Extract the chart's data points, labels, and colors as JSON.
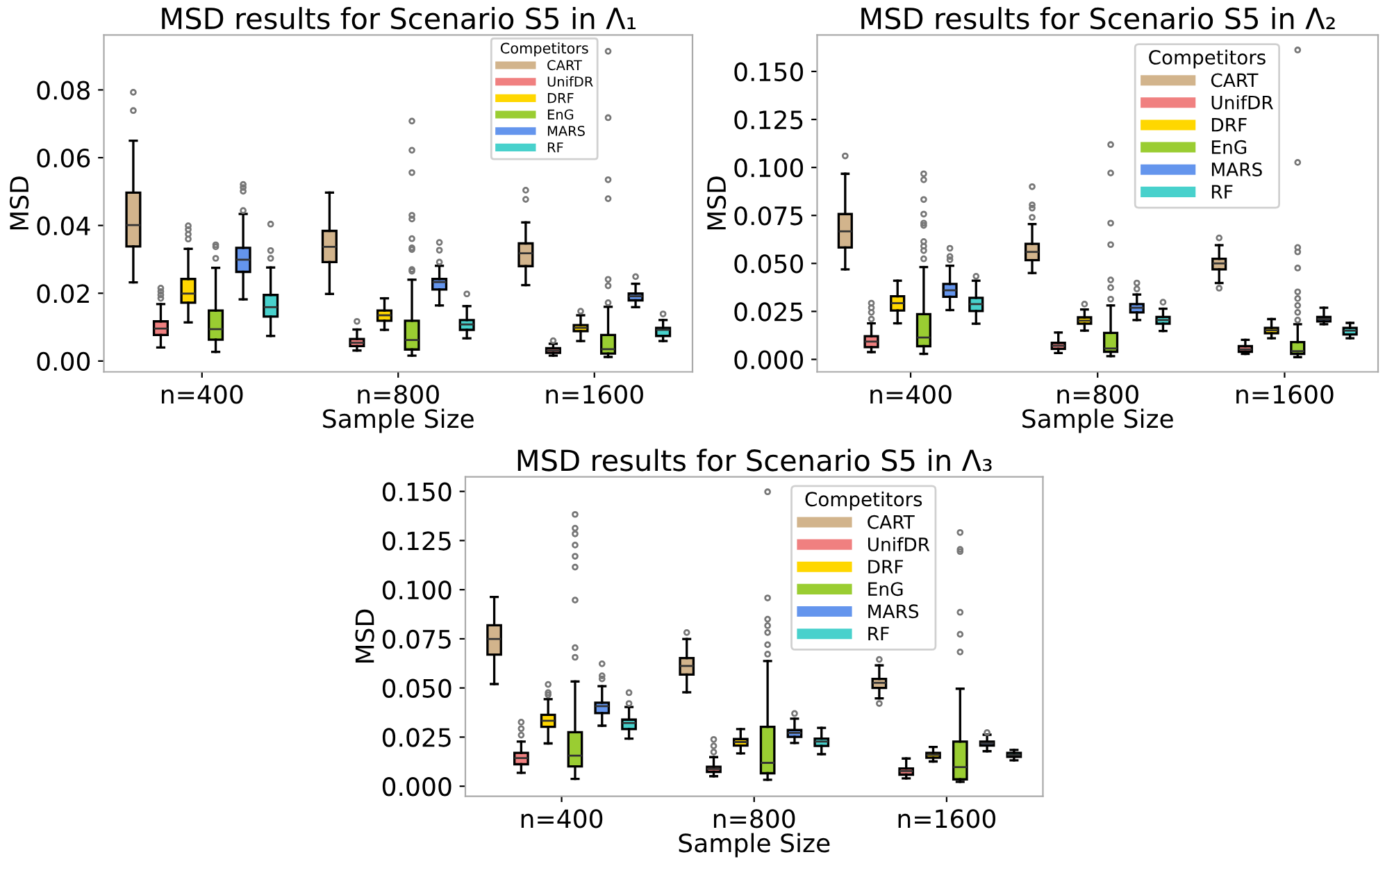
{
  "chart_data": [
    {
      "type": "box",
      "title": "MSD results for Scenario S5 in Λ₁",
      "xlabel": "Sample Size",
      "ylabel": "MSD",
      "categories": [
        "n=400",
        "n=800",
        "n=1600"
      ],
      "legend_title": "Competitors",
      "legend": "top right",
      "ylim": [
        -0.0032,
        0.0962
      ],
      "yticks": [
        {
          "value": 0,
          "label": "0.00"
        },
        {
          "value": 0.02,
          "label": "0.02"
        },
        {
          "value": 0.04,
          "label": "0.04"
        },
        {
          "value": 0.06,
          "label": "0.06"
        },
        {
          "value": 0.08,
          "label": "0.08"
        }
      ],
      "series": [
        {
          "name": "CART",
          "color": "#d2b48c",
          "boxes": [
            {
              "low": 0.0232,
              "q1": 0.0338,
              "median": 0.0401,
              "q3": 0.0497,
              "high": 0.065,
              "outliers": [
                0.0739,
                0.0793
              ]
            },
            {
              "low": 0.0198,
              "q1": 0.0292,
              "median": 0.0337,
              "q3": 0.0384,
              "high": 0.0497
            },
            {
              "low": 0.0224,
              "q1": 0.028,
              "median": 0.0318,
              "q3": 0.0347,
              "high": 0.0409,
              "outliers": [
                0.0477,
                0.0504
              ]
            }
          ]
        },
        {
          "name": "UnifDR",
          "color": "#f08080",
          "boxes": [
            {
              "low": 0.004,
              "q1": 0.0077,
              "median": 0.0096,
              "q3": 0.0117,
              "high": 0.0168,
              "outliers": [
                0.0185,
                0.0195,
                0.0205,
                0.0215
              ]
            },
            {
              "low": 0.0031,
              "q1": 0.0044,
              "median": 0.0054,
              "q3": 0.0065,
              "high": 0.0093,
              "outliers": [
                0.0117
              ]
            },
            {
              "low": 0.0016,
              "q1": 0.0024,
              "median": 0.0031,
              "q3": 0.0038,
              "high": 0.0051,
              "outliers": [
                0.006
              ]
            }
          ]
        },
        {
          "name": "DRF",
          "color": "#ffd700",
          "boxes": [
            {
              "low": 0.0114,
              "q1": 0.0172,
              "median": 0.0199,
              "q3": 0.0242,
              "high": 0.0331,
              "outliers": [
                0.036,
                0.0374,
                0.0388,
                0.0399
              ]
            },
            {
              "low": 0.0092,
              "q1": 0.0119,
              "median": 0.0135,
              "q3": 0.0149,
              "high": 0.0185
            },
            {
              "low": 0.0059,
              "q1": 0.0088,
              "median": 0.0098,
              "q3": 0.0106,
              "high": 0.0135,
              "outliers": [
                0.0147
              ]
            }
          ]
        },
        {
          "name": "EnG",
          "color": "#9acd32",
          "boxes": [
            {
              "low": 0.0027,
              "q1": 0.0063,
              "median": 0.0094,
              "q3": 0.0149,
              "high": 0.0275,
              "outliers": [
                0.0303,
                0.0337,
                0.0343
              ]
            },
            {
              "low": 0.0016,
              "q1": 0.0034,
              "median": 0.0062,
              "q3": 0.0119,
              "high": 0.024,
              "outliers": [
                0.0265,
                0.027,
                0.0329,
                0.0334,
                0.0361,
                0.0419,
                0.043,
                0.0556,
                0.0622,
                0.0708
              ]
            },
            {
              "low": 0.0012,
              "q1": 0.0022,
              "median": 0.0035,
              "q3": 0.0077,
              "high": 0.016,
              "outliers": [
                0.0172,
                0.0222,
                0.0241,
                0.0479,
                0.0535,
                0.0718,
                0.0914
              ]
            }
          ]
        },
        {
          "name": "MARS",
          "color": "#6495ed",
          "boxes": [
            {
              "low": 0.0182,
              "q1": 0.0263,
              "median": 0.0299,
              "q3": 0.0334,
              "high": 0.0434,
              "outliers": [
                0.0444,
                0.0501,
                0.0512,
                0.0521
              ]
            },
            {
              "low": 0.0164,
              "q1": 0.0211,
              "median": 0.0233,
              "q3": 0.0242,
              "high": 0.0281,
              "outliers": [
                0.0292,
                0.0327,
                0.035
              ]
            },
            {
              "low": 0.0159,
              "q1": 0.0179,
              "median": 0.0191,
              "q3": 0.0199,
              "high": 0.0228,
              "outliers": [
                0.0249
              ]
            }
          ]
        },
        {
          "name": "RF",
          "color": "#48d1cc",
          "boxes": [
            {
              "low": 0.0074,
              "q1": 0.0131,
              "median": 0.0159,
              "q3": 0.0195,
              "high": 0.0276,
              "outliers": [
                0.0303,
                0.0326,
                0.0404
              ]
            },
            {
              "low": 0.0067,
              "q1": 0.0092,
              "median": 0.0108,
              "q3": 0.0121,
              "high": 0.0162,
              "outliers": [
                0.0198
              ]
            },
            {
              "low": 0.0059,
              "q1": 0.0074,
              "median": 0.0092,
              "q3": 0.0098,
              "high": 0.0121,
              "outliers": [
                0.0139
              ]
            }
          ]
        }
      ]
    },
    {
      "type": "box",
      "title": "MSD results for Scenario S5 in Λ₂",
      "xlabel": "Sample Size",
      "ylabel": "MSD",
      "categories": [
        "n=400",
        "n=800",
        "n=1600"
      ],
      "legend_title": "Competitors",
      "legend": "top right",
      "ylim": [
        -0.0065,
        0.169
      ],
      "yticks": [
        {
          "value": 0,
          "label": "0.000"
        },
        {
          "value": 0.025,
          "label": "0.025"
        },
        {
          "value": 0.05,
          "label": "0.050"
        },
        {
          "value": 0.075,
          "label": "0.075"
        },
        {
          "value": 0.1,
          "label": "0.100"
        },
        {
          "value": 0.125,
          "label": "0.125"
        },
        {
          "value": 0.15,
          "label": "0.150"
        }
      ],
      "series": [
        {
          "name": "CART",
          "color": "#d2b48c",
          "boxes": [
            {
              "low": 0.0469,
              "q1": 0.0583,
              "median": 0.0667,
              "q3": 0.0757,
              "high": 0.0967,
              "outliers": [
                0.106
              ]
            },
            {
              "low": 0.045,
              "q1": 0.0517,
              "median": 0.056,
              "q3": 0.0602,
              "high": 0.0705,
              "outliers": [
                0.074,
                0.0788,
                0.0805,
                0.09
              ]
            },
            {
              "low": 0.0398,
              "q1": 0.0469,
              "median": 0.05,
              "q3": 0.0524,
              "high": 0.0595,
              "outliers": [
                0.0371,
                0.0633
              ]
            }
          ]
        },
        {
          "name": "UnifDR",
          "color": "#f08080",
          "boxes": [
            {
              "low": 0.0038,
              "q1": 0.0064,
              "median": 0.0093,
              "q3": 0.0121,
              "high": 0.0188,
              "outliers": [
                0.021,
                0.0245,
                0.0269,
                0.0293
              ]
            },
            {
              "low": 0.0033,
              "q1": 0.0055,
              "median": 0.0071,
              "q3": 0.0086,
              "high": 0.014
            },
            {
              "low": 0.0029,
              "q1": 0.004,
              "median": 0.0052,
              "q3": 0.0069,
              "high": 0.0102
            }
          ]
        },
        {
          "name": "DRF",
          "color": "#ffd700",
          "boxes": [
            {
              "low": 0.0188,
              "q1": 0.0255,
              "median": 0.0293,
              "q3": 0.0329,
              "high": 0.041
            },
            {
              "low": 0.015,
              "q1": 0.0186,
              "median": 0.0202,
              "q3": 0.0219,
              "high": 0.026,
              "outliers": [
                0.0288
              ]
            },
            {
              "low": 0.011,
              "q1": 0.0136,
              "median": 0.0152,
              "q3": 0.0164,
              "high": 0.021
            }
          ]
        },
        {
          "name": "EnG",
          "color": "#9acd32",
          "boxes": [
            {
              "low": 0.0029,
              "q1": 0.0069,
              "median": 0.0114,
              "q3": 0.0236,
              "high": 0.0481,
              "outliers": [
                0.0524,
                0.0567,
                0.059,
                0.0614,
                0.0698,
                0.071,
                0.0757,
                0.0833,
                0.0936,
                0.0967
              ]
            },
            {
              "low": 0.0017,
              "q1": 0.004,
              "median": 0.0057,
              "q3": 0.0138,
              "high": 0.0281,
              "outliers": [
                0.0314,
                0.0374,
                0.0414,
                0.0598,
                0.071,
                0.0971,
                0.1119
              ]
            },
            {
              "low": 0.0012,
              "q1": 0.0029,
              "median": 0.0043,
              "q3": 0.009,
              "high": 0.0183,
              "outliers": [
                0.0205,
                0.0245,
                0.0281,
                0.0317,
                0.0352,
                0.0476,
                0.056,
                0.0583,
                0.1026,
                0.1612
              ]
            }
          ]
        },
        {
          "name": "MARS",
          "color": "#6495ed",
          "boxes": [
            {
              "low": 0.0257,
              "q1": 0.0326,
              "median": 0.036,
              "q3": 0.0393,
              "high": 0.0488,
              "outliers": [
                0.0519,
                0.0536,
                0.0579
              ]
            },
            {
              "low": 0.0205,
              "q1": 0.0245,
              "median": 0.0269,
              "q3": 0.0288,
              "high": 0.0338,
              "outliers": [
                0.0367,
                0.0398
              ]
            },
            {
              "low": 0.0183,
              "q1": 0.0198,
              "median": 0.021,
              "q3": 0.0221,
              "high": 0.0269
            }
          ]
        },
        {
          "name": "RF",
          "color": "#48d1cc",
          "boxes": [
            {
              "low": 0.0186,
              "q1": 0.0252,
              "median": 0.0288,
              "q3": 0.0321,
              "high": 0.041,
              "outliers": [
                0.0433
              ]
            },
            {
              "low": 0.0148,
              "q1": 0.0186,
              "median": 0.0205,
              "q3": 0.0221,
              "high": 0.0264,
              "outliers": [
                0.0298
              ]
            },
            {
              "low": 0.011,
              "q1": 0.013,
              "median": 0.015,
              "q3": 0.0164,
              "high": 0.019
            }
          ]
        }
      ]
    },
    {
      "type": "box",
      "title": "MSD results for Scenario S5 in Λ₃",
      "xlabel": "Sample Size",
      "ylabel": "MSD",
      "categories": [
        "n=400",
        "n=800",
        "n=1600"
      ],
      "legend_title": "Competitors",
      "legend": "top right",
      "ylim": [
        -0.0051,
        0.1574
      ],
      "yticks": [
        {
          "value": 0,
          "label": "0.000"
        },
        {
          "value": 0.025,
          "label": "0.025"
        },
        {
          "value": 0.05,
          "label": "0.050"
        },
        {
          "value": 0.075,
          "label": "0.075"
        },
        {
          "value": 0.1,
          "label": "0.100"
        },
        {
          "value": 0.125,
          "label": "0.125"
        },
        {
          "value": 0.15,
          "label": "0.150"
        }
      ],
      "series": [
        {
          "name": "CART",
          "color": "#d2b48c",
          "boxes": [
            {
              "low": 0.052,
              "q1": 0.067,
              "median": 0.0749,
              "q3": 0.0819,
              "high": 0.0963
            },
            {
              "low": 0.0478,
              "q1": 0.0568,
              "median": 0.0612,
              "q3": 0.0652,
              "high": 0.0749,
              "outliers": [
                0.0782
              ]
            },
            {
              "low": 0.0447,
              "q1": 0.05,
              "median": 0.0526,
              "q3": 0.0546,
              "high": 0.0615,
              "outliers": [
                0.0421,
                0.0645
              ]
            }
          ]
        },
        {
          "name": "UnifDR",
          "color": "#f08080",
          "boxes": [
            {
              "low": 0.0068,
              "q1": 0.0112,
              "median": 0.0143,
              "q3": 0.017,
              "high": 0.0227,
              "outliers": [
                0.026,
                0.0293,
                0.0326
              ]
            },
            {
              "low": 0.0051,
              "q1": 0.0073,
              "median": 0.0088,
              "q3": 0.0099,
              "high": 0.0148,
              "outliers": [
                0.0174,
                0.0205,
                0.0238
              ]
            },
            {
              "low": 0.004,
              "q1": 0.0059,
              "median": 0.0077,
              "q3": 0.009,
              "high": 0.0141
            }
          ]
        },
        {
          "name": "DRF",
          "color": "#ffd700",
          "boxes": [
            {
              "low": 0.0218,
              "q1": 0.0302,
              "median": 0.0333,
              "q3": 0.0363,
              "high": 0.0443,
              "outliers": [
                0.0465,
                0.0476,
                0.0518
              ]
            },
            {
              "low": 0.0167,
              "q1": 0.0207,
              "median": 0.0225,
              "q3": 0.024,
              "high": 0.0291
            },
            {
              "low": 0.0126,
              "q1": 0.0145,
              "median": 0.0159,
              "q3": 0.017,
              "high": 0.02
            }
          ]
        },
        {
          "name": "EnG",
          "color": "#9acd32",
          "boxes": [
            {
              "low": 0.0037,
              "q1": 0.0101,
              "median": 0.0156,
              "q3": 0.0275,
              "high": 0.0533,
              "outliers": [
                0.0656,
                0.0705,
                0.0947,
                0.1115,
                0.117,
                0.1227,
                0.1284,
                0.1313,
                0.1383
              ]
            },
            {
              "low": 0.0033,
              "q1": 0.0066,
              "median": 0.0119,
              "q3": 0.0302,
              "high": 0.0637,
              "outliers": [
                0.0672,
                0.072,
                0.0782,
                0.0817,
                0.085,
                0.0958,
                0.1498
              ]
            },
            {
              "low": 0.0022,
              "q1": 0.0035,
              "median": 0.0097,
              "q3": 0.0227,
              "high": 0.0496,
              "outliers": [
                0.0683,
                0.0773,
                0.0885,
                0.1194,
                0.1205,
                0.1291
              ]
            }
          ]
        },
        {
          "name": "MARS",
          "color": "#6495ed",
          "boxes": [
            {
              "low": 0.0308,
              "q1": 0.0372,
              "median": 0.0407,
              "q3": 0.0425,
              "high": 0.0509,
              "outliers": [
                0.0546,
                0.0562,
                0.0623
              ]
            },
            {
              "low": 0.022,
              "q1": 0.0251,
              "median": 0.0271,
              "q3": 0.0286,
              "high": 0.0344,
              "outliers": [
                0.037
              ]
            },
            {
              "low": 0.0178,
              "q1": 0.0207,
              "median": 0.0218,
              "q3": 0.0227,
              "high": 0.0262,
              "outliers": [
                0.0273
              ]
            }
          ]
        },
        {
          "name": "RF",
          "color": "#48d1cc",
          "boxes": [
            {
              "low": 0.0242,
              "q1": 0.0291,
              "median": 0.0322,
              "q3": 0.0339,
              "high": 0.0403,
              "outliers": [
                0.0421,
                0.0476
              ]
            },
            {
              "low": 0.0163,
              "q1": 0.0205,
              "median": 0.0227,
              "q3": 0.0242,
              "high": 0.0297
            },
            {
              "low": 0.0132,
              "q1": 0.015,
              "median": 0.0159,
              "q3": 0.017,
              "high": 0.0185
            }
          ]
        }
      ]
    }
  ]
}
